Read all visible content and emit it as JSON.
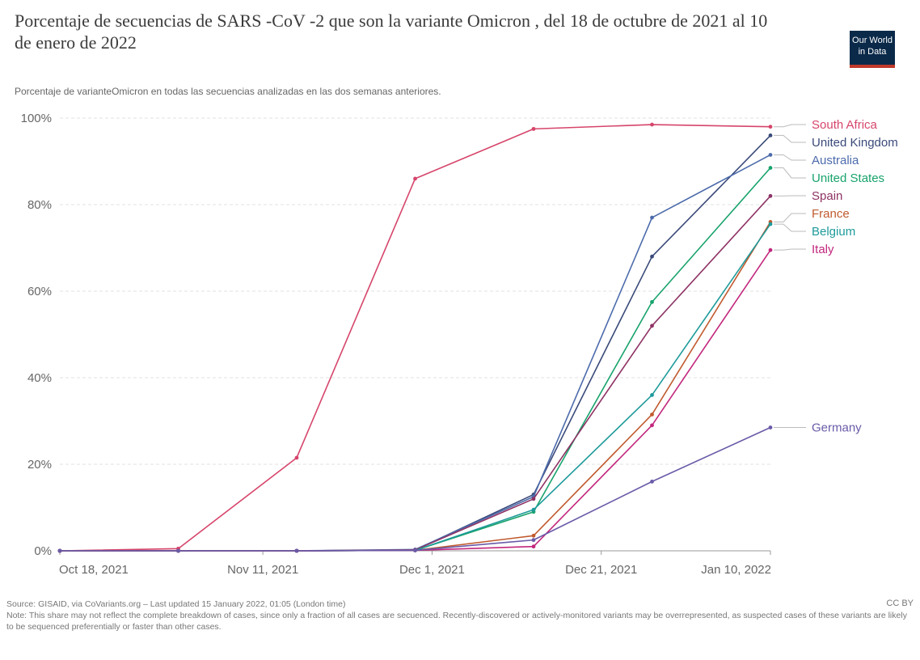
{
  "header": {
    "title": "Porcentaje de secuencias de SARS -CoV -2 que son la variante Omicron , del 18 de octubre de 2021 al 10 de enero de 2022",
    "subtitle": "Porcentaje de varianteOmicron en todas las secuencias analizadas en las dos semanas anteriores.",
    "logo_line1": "Our World",
    "logo_line2": "in Data"
  },
  "footer": {
    "source": "Source: GISAID, via CoVariants.org – Last updated 15 January 2022, 01:05 (London time)",
    "note": "Note: This share may not reflect the complete breakdown of cases, since only a fraction of all cases are secuenced. Recently-discovered or actively-monitored variants may be overrepresented, as suspected cases of these variants are likely to be sequenced preferentially or faster than other cases.",
    "license": "CC BY"
  },
  "chart_data": {
    "type": "line",
    "x_ticks": [
      "Oct 18, 2021",
      "Nov 11, 2021",
      "Dec 1, 2021",
      "Dec 21, 2021",
      "Jan 10, 2022"
    ],
    "y_ticks": [
      "0%",
      "20%",
      "40%",
      "60%",
      "80%",
      "100%"
    ],
    "ylim": [
      0,
      100
    ],
    "grid": "horizontal",
    "legend": "right, labels at line ends",
    "series": [
      {
        "name": "South Africa",
        "color": "#d6456b",
        "points": [
          [
            "2021-10-18",
            0
          ],
          [
            "2021-11-01",
            0.5
          ],
          [
            "2021-11-15",
            21.5
          ],
          [
            "2021-11-29",
            86
          ],
          [
            "2021-12-13",
            97.5
          ],
          [
            "2021-12-27",
            98.5
          ],
          [
            "2022-01-10",
            98
          ]
        ]
      },
      {
        "name": "United Kingdom",
        "color": "#3a4a7a",
        "points": [
          [
            "2021-10-18",
            0
          ],
          [
            "2021-11-01",
            0
          ],
          [
            "2021-11-15",
            0
          ],
          [
            "2021-11-29",
            0.2
          ],
          [
            "2021-12-13",
            13
          ],
          [
            "2021-12-27",
            68
          ],
          [
            "2022-01-10",
            96
          ]
        ]
      },
      {
        "name": "Australia",
        "color": "#4c6bab",
        "points": [
          [
            "2021-10-18",
            0
          ],
          [
            "2021-11-01",
            0
          ],
          [
            "2021-11-15",
            0
          ],
          [
            "2021-11-29",
            0.3
          ],
          [
            "2021-12-13",
            12.5
          ],
          [
            "2021-12-27",
            77
          ],
          [
            "2022-01-10",
            91.5
          ]
        ]
      },
      {
        "name": "United States",
        "color": "#18a36c",
        "points": [
          [
            "2021-10-18",
            0
          ],
          [
            "2021-11-01",
            0
          ],
          [
            "2021-11-15",
            0
          ],
          [
            "2021-11-29",
            0.1
          ],
          [
            "2021-12-13",
            9
          ],
          [
            "2021-12-27",
            57.5
          ],
          [
            "2022-01-10",
            88.5
          ]
        ]
      },
      {
        "name": "Spain",
        "color": "#8e3264",
        "points": [
          [
            "2021-10-18",
            0
          ],
          [
            "2021-11-01",
            0
          ],
          [
            "2021-11-15",
            0
          ],
          [
            "2021-11-29",
            0.2
          ],
          [
            "2021-12-13",
            12
          ],
          [
            "2021-12-27",
            52
          ],
          [
            "2022-01-10",
            82
          ]
        ]
      },
      {
        "name": "France",
        "color": "#c05a2e",
        "points": [
          [
            "2021-10-18",
            0
          ],
          [
            "2021-11-01",
            0
          ],
          [
            "2021-11-15",
            0
          ],
          [
            "2021-11-29",
            0.1
          ],
          [
            "2021-12-13",
            3.5
          ],
          [
            "2021-12-27",
            31.5
          ],
          [
            "2022-01-10",
            76
          ]
        ]
      },
      {
        "name": "Belgium",
        "color": "#1e9a9a",
        "points": [
          [
            "2021-10-18",
            0
          ],
          [
            "2021-11-01",
            0
          ],
          [
            "2021-11-15",
            0
          ],
          [
            "2021-11-29",
            0.1
          ],
          [
            "2021-12-13",
            9.5
          ],
          [
            "2021-12-27",
            36
          ],
          [
            "2022-01-10",
            75.5
          ]
        ]
      },
      {
        "name": "Italy",
        "color": "#c2277d",
        "points": [
          [
            "2021-10-18",
            0
          ],
          [
            "2021-11-01",
            0
          ],
          [
            "2021-11-15",
            0
          ],
          [
            "2021-11-29",
            0.1
          ],
          [
            "2021-12-13",
            1
          ],
          [
            "2021-12-27",
            29
          ],
          [
            "2022-01-10",
            69.5
          ]
        ]
      },
      {
        "name": "Germany",
        "color": "#6a5aa8",
        "points": [
          [
            "2021-10-18",
            0
          ],
          [
            "2021-11-01",
            0
          ],
          [
            "2021-11-15",
            0
          ],
          [
            "2021-11-29",
            0.1
          ],
          [
            "2021-12-13",
            2.5
          ],
          [
            "2021-12-27",
            16
          ],
          [
            "2022-01-10",
            28.5
          ]
        ]
      }
    ]
  }
}
